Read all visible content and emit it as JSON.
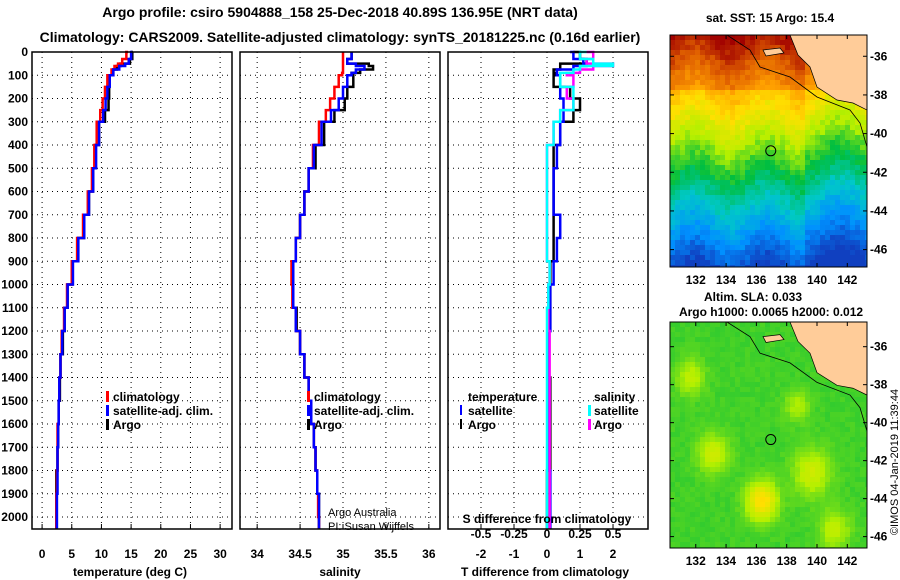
{
  "header": {
    "line1": "Argo profile: csiro 5904888_158 25-Dec-2018 40.89S 136.95E (NRT data)",
    "line2": "Climatology: CARS2009. Satellite-adjusted climatology: synTS_20181225.nc (0.16d earlier)"
  },
  "colors": {
    "climatology": "#ff0000",
    "satellite": "#0000ff",
    "argo": "#000000",
    "sal_satellite": "#00ffff",
    "sal_argo": "#ff00ff",
    "land": "#ffcc99"
  },
  "watermark": "©IMOS 04-Jan-2019 11:39:44",
  "chart_data": [
    {
      "type": "line",
      "name": "temperature-profile",
      "xlabel": "temperature (deg C)",
      "xlim": [
        -1.7,
        32
      ],
      "ylim": [
        2050,
        0
      ],
      "xticks": [
        0,
        5,
        10,
        15,
        20,
        25,
        30
      ],
      "yticks": [
        0,
        100,
        200,
        300,
        400,
        500,
        600,
        700,
        800,
        900,
        1000,
        1100,
        1200,
        1300,
        1400,
        1500,
        1600,
        1700,
        1800,
        1900,
        2000
      ],
      "grid": true,
      "legend": [
        "climatology",
        "satellite-adj. clim.",
        "Argo"
      ],
      "depth": [
        0,
        30,
        50,
        60,
        75,
        100,
        150,
        200,
        250,
        300,
        400,
        500,
        600,
        700,
        800,
        900,
        1000,
        1100,
        1200,
        1300,
        1400,
        1500,
        1600,
        1700,
        1800,
        1900,
        2000,
        2050
      ],
      "series": [
        {
          "name": "climatology",
          "values": [
            14.5,
            14.2,
            13.5,
            12.8,
            12.2,
            11.7,
            11.0,
            10.6,
            10.2,
            9.8,
            9.2,
            8.8,
            8.4,
            7.7,
            6.9,
            5.9,
            5.0,
            4.2,
            3.7,
            3.3,
            3.1,
            2.9,
            2.8,
            2.6,
            2.6,
            2.5,
            2.4,
            2.4
          ]
        },
        {
          "name": "satellite-adj. clim.",
          "values": [
            15.2,
            15.0,
            14.6,
            14.0,
            13.0,
            12.0,
            11.4,
            11.0,
            10.7,
            10.3,
            9.6,
            9.1,
            8.6,
            7.9,
            7.1,
            6.1,
            5.2,
            4.3,
            3.8,
            3.4,
            3.1,
            2.9,
            2.8,
            2.7,
            2.6,
            2.6,
            2.5,
            2.5
          ]
        },
        {
          "name": "Argo",
          "values": [
            15.3,
            15.2,
            14.8,
            13.2,
            12.6,
            12.0,
            11.2,
            11.3,
            11.2,
            10.6,
            9.6,
            9.0,
            8.6,
            7.9,
            7.1,
            6.1,
            5.1,
            4.3,
            3.8,
            3.5,
            3.1,
            3.0,
            2.8,
            2.7,
            2.6,
            2.4,
            2.4,
            2.4
          ]
        }
      ]
    },
    {
      "type": "line",
      "name": "salinity-profile",
      "xlabel": "salinity",
      "xlim": [
        33.8,
        36.13
      ],
      "ylim": [
        2050,
        0
      ],
      "xticks": [
        34,
        34.5,
        35,
        35.5,
        36
      ],
      "grid": true,
      "legend": [
        "climatology",
        "satellite-adj. clim.",
        "Argo"
      ],
      "annotation": [
        "Argo Australia",
        "PI: Susan Wijffels"
      ],
      "depth": [
        0,
        30,
        50,
        60,
        75,
        90,
        100,
        150,
        200,
        250,
        300,
        400,
        500,
        600,
        700,
        800,
        900,
        1000,
        1100,
        1200,
        1300,
        1400,
        1500,
        1600,
        1700,
        1800,
        1900,
        2000,
        2050
      ],
      "series": [
        {
          "name": "climatology",
          "values": [
            35.0,
            35.0,
            35.0,
            35.0,
            35.0,
            35.0,
            34.99,
            34.95,
            34.9,
            34.85,
            34.8,
            34.72,
            34.65,
            34.6,
            34.55,
            34.5,
            34.45,
            34.4,
            34.41,
            34.45,
            34.5,
            34.55,
            34.6,
            34.63,
            34.66,
            34.68,
            34.7,
            34.71,
            34.72
          ]
        },
        {
          "name": "satellite-adj. clim.",
          "values": [
            35.1,
            35.1,
            35.05,
            35.15,
            35.25,
            35.15,
            35.1,
            35.05,
            35.0,
            34.95,
            34.86,
            34.75,
            34.66,
            34.6,
            34.55,
            34.5,
            34.45,
            34.42,
            34.42,
            34.45,
            34.5,
            34.55,
            34.6,
            34.63,
            34.66,
            34.68,
            34.7,
            34.72,
            34.72
          ]
        },
        {
          "name": "Argo",
          "values": [
            35.1,
            35.1,
            35.05,
            35.3,
            35.35,
            35.2,
            35.1,
            35.12,
            35.05,
            35.02,
            34.9,
            34.78,
            34.68,
            34.6,
            34.55,
            34.5,
            34.45,
            34.42,
            34.42,
            34.46,
            34.5,
            34.55,
            34.6,
            34.63,
            34.66,
            34.68,
            34.7,
            34.72,
            34.72
          ]
        }
      ]
    },
    {
      "type": "line",
      "name": "difference-profile",
      "xlabel": "T difference from climatology",
      "xlim": [
        -3,
        3.06
      ],
      "ylim": [
        2050,
        0
      ],
      "xticks": [
        -2,
        -1,
        0,
        1,
        2
      ],
      "s_axis_label": "S difference from climatology",
      "s_xticks": [
        "-0.5",
        "-0.25",
        "0",
        "0.25",
        "0.5"
      ],
      "grid": true,
      "legend_temperature": {
        "title": "temperature",
        "items": [
          "satellite",
          "Argo"
        ]
      },
      "legend_salinity": {
        "title": "salinity",
        "items": [
          "satellite",
          "Argo"
        ]
      },
      "depth": [
        0,
        30,
        50,
        60,
        75,
        90,
        100,
        150,
        200,
        250,
        300,
        400,
        500,
        600,
        700,
        800,
        900,
        1000,
        1100,
        1200,
        1400,
        1600,
        1800,
        2000,
        2050
      ],
      "series": [
        {
          "name": "T satellite",
          "values": [
            0.7,
            0.8,
            1.1,
            1.2,
            0.8,
            0.3,
            0.3,
            0.4,
            0.4,
            0.5,
            0.5,
            0.4,
            0.3,
            0.2,
            0.2,
            0.4,
            0.3,
            0.2,
            0.1,
            0.1,
            0.05,
            0.05,
            0.05,
            0.1,
            0.1
          ]
        },
        {
          "name": "T Argo",
          "values": [
            0.8,
            1.0,
            1.2,
            0.4,
            0.4,
            0.2,
            0.3,
            0.2,
            0.7,
            1.0,
            0.8,
            0.4,
            0.2,
            0.2,
            0.2,
            0.2,
            0.2,
            0.1,
            0.1,
            0.1,
            0.05,
            0.1,
            0.1,
            0.0,
            0.0
          ]
        },
        {
          "name": "S satellite",
          "values": [
            0.3,
            0.25,
            0.35,
            0.5,
            0.25,
            0.2,
            0.1,
            0.1,
            0.2,
            0.2,
            0.1,
            0.05,
            0.0,
            0.0,
            0.0,
            0.0,
            0.0,
            0.02,
            0.01,
            0.0,
            0.0,
            0.0,
            0.0,
            0.0,
            0.0
          ]
        },
        {
          "name": "S Argo",
          "values": [
            0.3,
            0.35,
            0.3,
            0.5,
            0.35,
            0.25,
            0.15,
            0.2,
            0.15,
            0.2,
            0.1,
            0.05,
            0.0,
            0.0,
            0.0,
            0.0,
            0.0,
            0.02,
            0.01,
            0.01,
            0.02,
            0.02,
            0.02,
            0.02,
            0.02
          ]
        }
      ]
    },
    {
      "type": "heatmap",
      "name": "sst-map",
      "title": "sat. SST: 15 Argo: 15.4",
      "xticks": [
        132,
        134,
        136,
        138,
        140,
        142
      ],
      "yticks": [
        -36,
        -38,
        -40,
        -42,
        -44,
        -46
      ],
      "xlim": [
        130.3,
        143.3
      ],
      "ylim": [
        -46.9,
        -34.9
      ],
      "argo_position": {
        "lon": 136.95,
        "lat": -40.89
      }
    },
    {
      "type": "heatmap",
      "name": "sla-map",
      "title": "Altim. SLA: 0.033",
      "subtitle": "Argo h1000: 0.0065 h2000: 0.012",
      "xticks": [
        132,
        134,
        136,
        138,
        140,
        142
      ],
      "yticks": [
        -36,
        -38,
        -40,
        -42,
        -44,
        -46
      ],
      "xlim": [
        130.3,
        143.3
      ],
      "ylim": [
        -46.6,
        -34.7
      ],
      "argo_position": {
        "lon": 136.95,
        "lat": -40.89
      }
    }
  ]
}
